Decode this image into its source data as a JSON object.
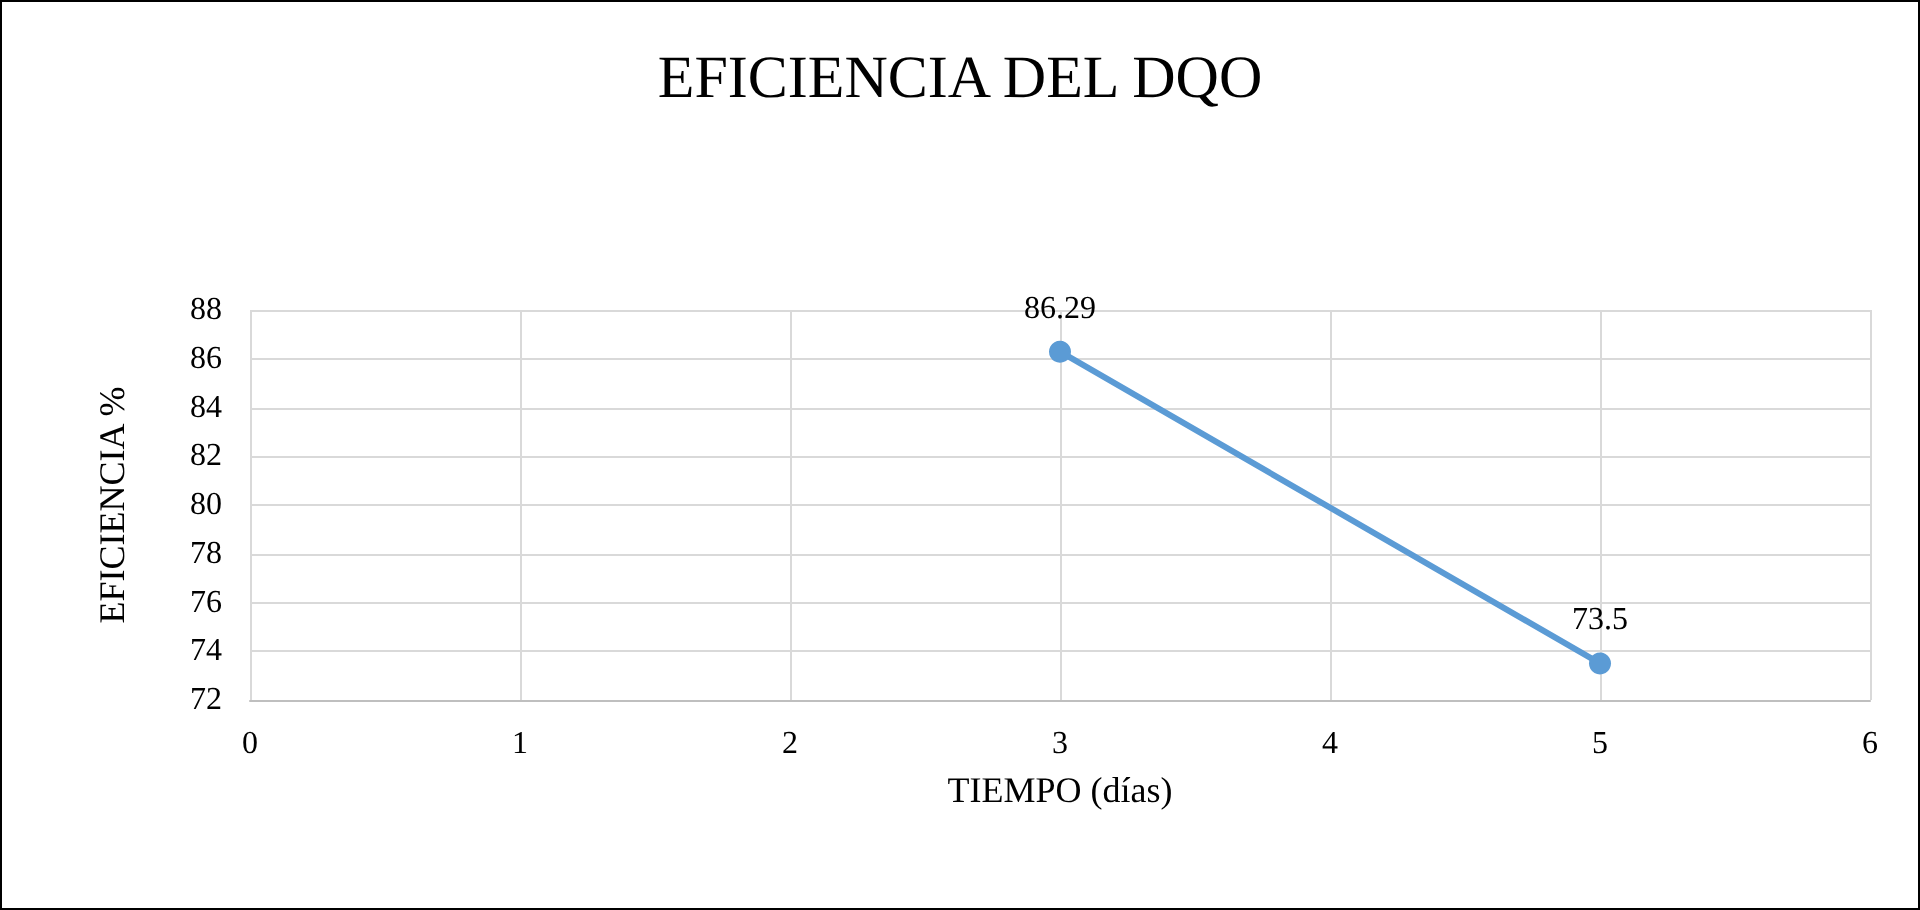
{
  "chart_data": {
    "type": "line",
    "title": "EFICIENCIA DEL DQO",
    "xlabel": "TIEMPO (días)",
    "ylabel": "EFICIENCIA %",
    "x": [
      3,
      5
    ],
    "series": [
      {
        "color": "#5b9bd5",
        "values": [
          86.29,
          73.5
        ]
      }
    ],
    "xlim": [
      0,
      6
    ],
    "xticks": [
      0,
      1,
      2,
      3,
      4,
      5,
      6
    ],
    "ylim": [
      72,
      88
    ],
    "yticks": [
      72,
      74,
      76,
      78,
      80,
      82,
      84,
      86,
      88
    ],
    "grid": true,
    "marker": "circle",
    "data_labels": true
  }
}
